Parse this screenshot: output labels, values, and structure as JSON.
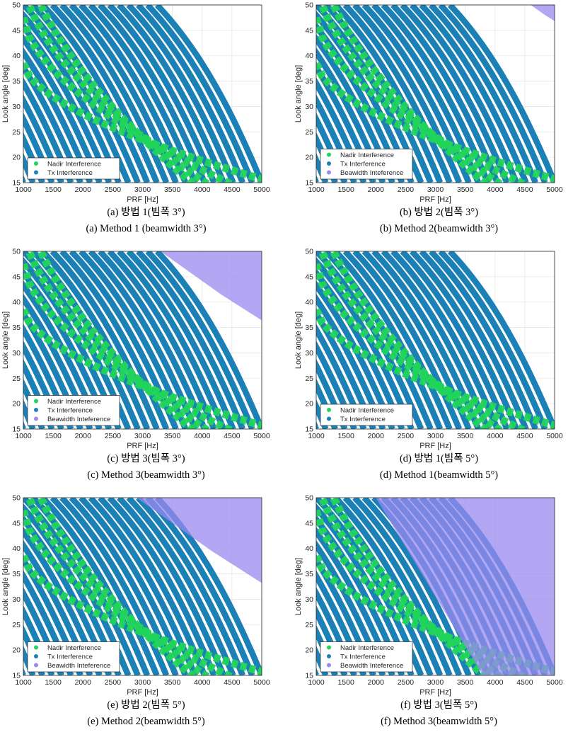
{
  "colors": {
    "nadir": "#21d45a",
    "tx": "#1a80b6",
    "beam": "#9a8af0",
    "grid": "#e6e6e6",
    "axis": "#262626"
  },
  "chart_data": [
    {
      "id": "a",
      "type": "scatter",
      "caption_kr": "(a)  방법 1(빔폭 3°)",
      "caption_en": "(a)  Method  1  (beamwidth 3°)",
      "xlabel": "PRF [Hz]",
      "ylabel": "Look angle [deg]",
      "xlim": [
        1000,
        5000
      ],
      "ylim": [
        15,
        50
      ],
      "xticks": [
        "1000",
        "1500",
        "2000",
        "2500",
        "3000",
        "3500",
        "4000",
        "4500",
        "5000"
      ],
      "yticks": [
        "15",
        "20",
        "25",
        "30",
        "35",
        "40",
        "45",
        "50"
      ],
      "grid": true,
      "legend_position": "bottom-left",
      "beam_threshold_prf": null,
      "series": [
        {
          "name": "Nadir Interference",
          "color": "#21d45a"
        },
        {
          "name": "Tx Interference",
          "color": "#1a80b6"
        }
      ]
    },
    {
      "id": "b",
      "type": "scatter",
      "caption_kr": "(b)  방법 2(빔폭 3°)",
      "caption_en": "(b)  Method  2(beamwidth 3°)",
      "xlabel": "PRF [Hz]",
      "ylabel": "Look angle [deg]",
      "xlim": [
        1000,
        5000
      ],
      "ylim": [
        15,
        50
      ],
      "xticks": [
        "1000",
        "1500",
        "2000",
        "2500",
        "3000",
        "3500",
        "4000",
        "4500",
        "5000"
      ],
      "yticks": [
        "15",
        "20",
        "25",
        "30",
        "35",
        "40",
        "45",
        "50"
      ],
      "grid": true,
      "legend_position": "bottom-left",
      "beam_threshold_prf": 4600,
      "series": [
        {
          "name": "Nadir Interference",
          "color": "#21d45a"
        },
        {
          "name": "Tx Interference",
          "color": "#1a80b6"
        },
        {
          "name": "Beawidth Inteference",
          "color": "#9a8af0"
        }
      ]
    },
    {
      "id": "c",
      "type": "scatter",
      "caption_kr": "(c)  방법 3(빔폭 3°)",
      "caption_en": "(c)  Method  3(beamwidth 3°)",
      "xlabel": "PRF [Hz]",
      "ylabel": "Look angle [deg]",
      "xlim": [
        1000,
        5000
      ],
      "ylim": [
        15,
        50
      ],
      "xticks": [
        "1000",
        "1500",
        "2000",
        "2500",
        "3000",
        "3500",
        "4000",
        "4500",
        "5000"
      ],
      "yticks": [
        "15",
        "20",
        "25",
        "30",
        "35",
        "40",
        "45",
        "50"
      ],
      "grid": true,
      "legend_position": "bottom-left",
      "beam_threshold_prf": 3300,
      "series": [
        {
          "name": "Nadir Interference",
          "color": "#21d45a"
        },
        {
          "name": "Tx Interference",
          "color": "#1a80b6"
        },
        {
          "name": "Beawidth Inteference",
          "color": "#9a8af0"
        }
      ]
    },
    {
      "id": "d",
      "type": "scatter",
      "caption_kr": "(d)  방법 1(빔폭 5°)",
      "caption_en": "(d)  Method  1(beamwidth 5°)",
      "xlabel": "PRF [Hz]",
      "ylabel": "Look angle [deg]",
      "xlim": [
        1000,
        5000
      ],
      "ylim": [
        15,
        50
      ],
      "xticks": [
        "1000",
        "1500",
        "2000",
        "2500",
        "3000",
        "3500",
        "4000",
        "4500",
        "5000"
      ],
      "yticks": [
        "15",
        "20",
        "25",
        "30",
        "35",
        "40",
        "45",
        "50"
      ],
      "grid": true,
      "legend_position": "bottom-left",
      "beam_threshold_prf": null,
      "series": [
        {
          "name": "Nadir Interference",
          "color": "#21d45a"
        },
        {
          "name": "Tx Interference",
          "color": "#1a80b6"
        }
      ]
    },
    {
      "id": "e",
      "type": "scatter",
      "caption_kr": "(e)  방법 2(빔폭 5°)",
      "caption_en": "(e)  Method  2(beamwidth 5°)",
      "xlabel": "PRF [Hz]",
      "ylabel": "Look angle [deg]",
      "xlim": [
        1000,
        5000
      ],
      "ylim": [
        15,
        50
      ],
      "xticks": [
        "1000",
        "1500",
        "2000",
        "2500",
        "3000",
        "3500",
        "4000",
        "4500",
        "5000"
      ],
      "yticks": [
        "15",
        "20",
        "25",
        "30",
        "35",
        "40",
        "45",
        "50"
      ],
      "grid": true,
      "legend_position": "bottom-left",
      "beam_threshold_prf": 2900,
      "series": [
        {
          "name": "Nadir Interference",
          "color": "#21d45a"
        },
        {
          "name": "Tx Interference",
          "color": "#1a80b6"
        },
        {
          "name": "Beawidth Inteference",
          "color": "#9a8af0"
        }
      ]
    },
    {
      "id": "f",
      "type": "scatter",
      "caption_kr": "(f)  방법 3(빔폭 5°)",
      "caption_en": "(f)  Method  3(beamwidth 5°)",
      "xlabel": "PRF [Hz]",
      "ylabel": "Look angle [deg]",
      "xlim": [
        1000,
        5000
      ],
      "ylim": [
        15,
        50
      ],
      "xticks": [
        "1000",
        "1500",
        "2000",
        "2500",
        "3000",
        "3500",
        "4000",
        "4500",
        "5000"
      ],
      "yticks": [
        "15",
        "20",
        "25",
        "30",
        "35",
        "40",
        "45",
        "50"
      ],
      "grid": true,
      "legend_position": "bottom-left",
      "beam_threshold_prf": 2000,
      "series": [
        {
          "name": "Nadir Interference",
          "color": "#21d45a"
        },
        {
          "name": "Tx Interference",
          "color": "#1a80b6"
        },
        {
          "name": "Beawidth Inteference",
          "color": "#9a8af0"
        }
      ]
    }
  ]
}
